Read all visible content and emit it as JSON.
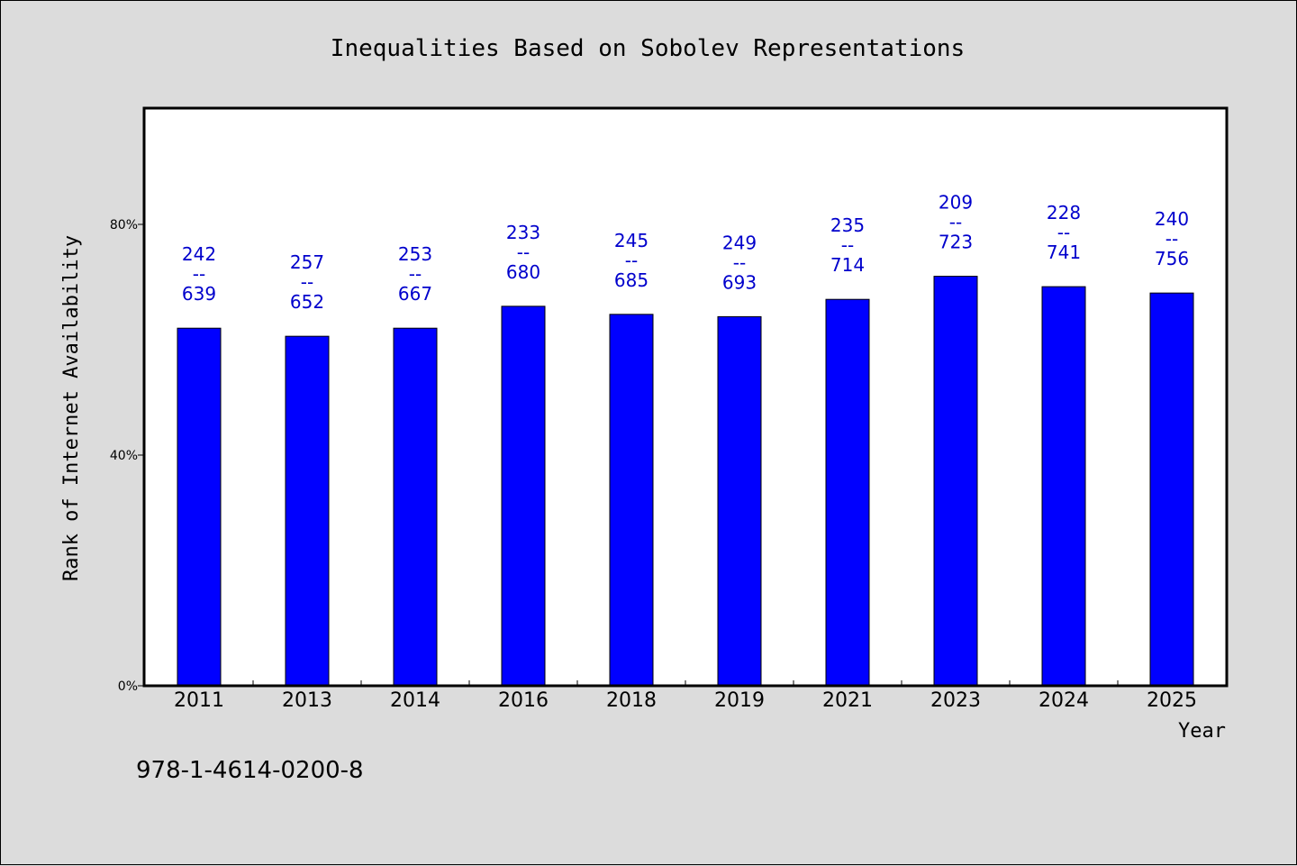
{
  "footer_text": "978-1-4614-0200-8",
  "colors": {
    "bar": "#0000ff",
    "label": "#0000cc",
    "background": "#dcdcdc",
    "plot": "#ffffff"
  },
  "chart_data": {
    "type": "bar",
    "title": "Inequalities Based on Sobolev Representations",
    "xlabel": "Year",
    "ylabel": "Rank of Internet Availability",
    "ylim": [
      0,
      100
    ],
    "yticks": [
      {
        "value": 0,
        "label": "0%"
      },
      {
        "value": 40,
        "label": "40%"
      },
      {
        "value": 80,
        "label": "80%"
      }
    ],
    "grid": false,
    "categories": [
      "2011",
      "2013",
      "2014",
      "2016",
      "2018",
      "2019",
      "2021",
      "2023",
      "2024",
      "2025"
    ],
    "values": [
      62,
      60.6,
      62,
      65.8,
      64.4,
      64,
      67,
      71,
      69.2,
      68.1
    ],
    "numerators": [
      "242",
      "257",
      "253",
      "233",
      "245",
      "249",
      "235",
      "209",
      "228",
      "240"
    ],
    "denominators": [
      "639",
      "652",
      "667",
      "680",
      "685",
      "693",
      "714",
      "723",
      "741",
      "756"
    ],
    "label_separator": "--"
  }
}
